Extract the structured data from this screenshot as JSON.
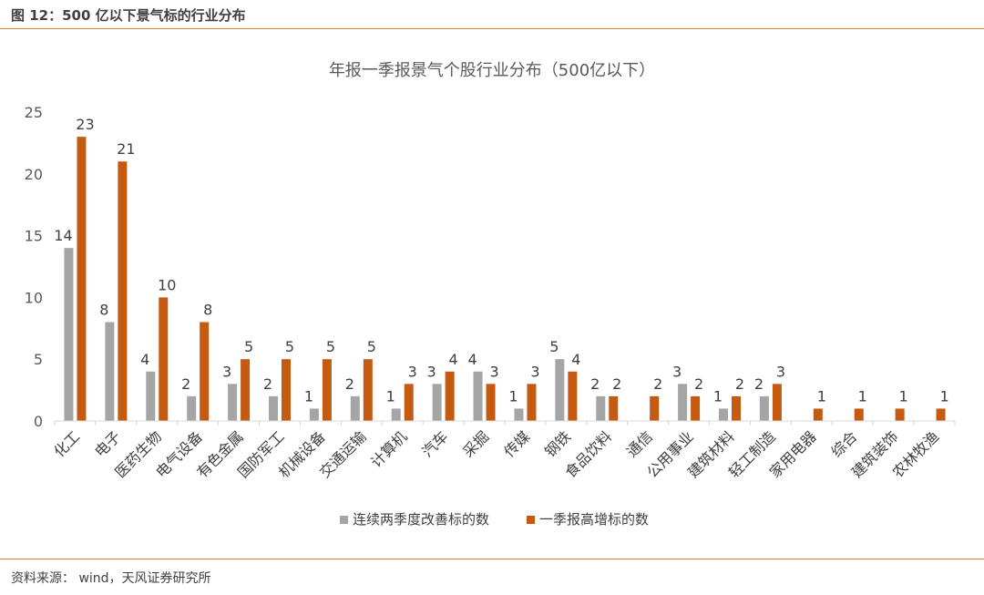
{
  "figure_title": "图 12：500 亿以下景气标的行业分布",
  "source": "资料来源：   wind，天风证券研究所",
  "colors": {
    "series1": "#a5a5a5",
    "series2": "#c55a11",
    "rule": "#e07b39"
  },
  "chart_data": {
    "type": "bar",
    "title": "年报一季报景气个股行业分布（500亿以下）",
    "categories": [
      "化工",
      "电子",
      "医药生物",
      "电气设备",
      "有色金属",
      "国防军工",
      "机械设备",
      "交通运输",
      "计算机",
      "汽车",
      "采掘",
      "传媒",
      "钢铁",
      "食品饮料",
      "通信",
      "公用事业",
      "建筑材料",
      "轻工制造",
      "家用电器",
      "综合",
      "建筑装饰",
      "农林牧渔"
    ],
    "series": [
      {
        "name": "连续两季度改善标的数",
        "values": [
          14,
          8,
          4,
          2,
          3,
          2,
          1,
          2,
          1,
          3,
          4,
          1,
          5,
          2,
          null,
          3,
          1,
          2,
          null,
          null,
          null,
          null
        ]
      },
      {
        "name": "一季报高增标的数",
        "values": [
          23,
          21,
          10,
          8,
          5,
          5,
          5,
          5,
          3,
          4,
          3,
          3,
          4,
          2,
          2,
          2,
          2,
          3,
          1,
          1,
          1,
          1
        ]
      }
    ],
    "ylim": [
      0,
      25
    ],
    "yticks": [
      0,
      5,
      10,
      15,
      20,
      25
    ],
    "xlabel": "",
    "ylabel": "",
    "grid": false,
    "legend": "bottom"
  }
}
